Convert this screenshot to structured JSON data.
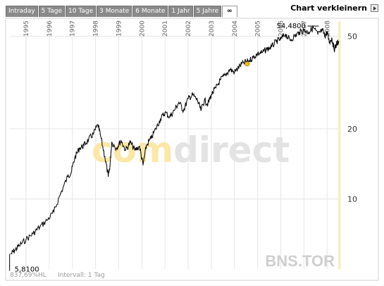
{
  "tabs": [
    {
      "label": "Intraday",
      "active": false
    },
    {
      "label": "5 Tage",
      "active": false
    },
    {
      "label": "10 Tage",
      "active": false
    },
    {
      "label": "3 Monate",
      "active": false
    },
    {
      "label": "6 Monate",
      "active": false
    },
    {
      "label": "1 Jahr",
      "active": false
    },
    {
      "label": "5 Jahre",
      "active": false
    },
    {
      "label": "∞",
      "active": true
    }
  ],
  "header": {
    "shrink_label": "Chart verkleinern"
  },
  "watermark": {
    "part1": "comdirect",
    "color_accent": "#f5c400"
  },
  "symbol": "BNS.TOR",
  "footer": {
    "change": "837,69%HL",
    "interval": "Intervall: 1 Tag"
  },
  "markers": {
    "high_label": "54,4800",
    "low_label": "5,8100"
  },
  "colors": {
    "line": "#000000",
    "grid": "#e6e6e6",
    "today_band": "#f8eec3",
    "tab_bg": "#8a8a8a"
  },
  "chart_data": {
    "type": "line",
    "y_scale": "log",
    "ylim": [
      5.0,
      58.0
    ],
    "xlim": [
      1994.3,
      2008.6
    ],
    "x_ticks": [
      "1995",
      "1996",
      "1997",
      "1998",
      "1999",
      "2000",
      "2001",
      "2002",
      "2003",
      "2004",
      "2005",
      "2006",
      "2007",
      "2008"
    ],
    "y_ticks": [
      10,
      20,
      50
    ],
    "series": [
      {
        "x": [
          1994.35,
          1994.5,
          1994.7,
          1995.0,
          1995.3,
          1995.6,
          1995.9,
          1996.2,
          1996.5,
          1996.8,
          1996.95,
          1997.1,
          1997.3,
          1997.5,
          1997.7,
          1997.9,
          1998.1,
          1998.2,
          1998.4,
          1998.55,
          1998.62,
          1998.7,
          1998.9,
          1999.1,
          1999.3,
          1999.5,
          1999.7,
          1999.9,
          2000.05,
          2000.2,
          2000.4,
          2000.6,
          2000.8,
          2001.0,
          2001.2,
          2001.4,
          2001.6,
          2001.8,
          2002.0,
          2002.2,
          2002.4,
          2002.55,
          2002.7,
          2002.85,
          2003.0,
          2003.2,
          2003.4,
          2003.6,
          2003.8,
          2004.0,
          2004.2,
          2004.4,
          2004.6,
          2004.8,
          2005.0,
          2005.2,
          2005.4,
          2005.6,
          2005.8,
          2006.0,
          2006.2,
          2006.4,
          2006.6,
          2006.8,
          2007.0,
          2007.2,
          2007.4,
          2007.6,
          2007.8,
          2007.9,
          2008.0,
          2008.1,
          2008.2,
          2008.3,
          2008.4,
          2008.5
        ],
        "y": [
          5.81,
          6.0,
          6.3,
          6.7,
          7.1,
          7.6,
          8.1,
          8.8,
          10.6,
          12.5,
          13.0,
          15.0,
          16.5,
          17.0,
          18.0,
          19.0,
          20.8,
          19.0,
          15.2,
          12.5,
          13.8,
          17.5,
          16.5,
          17.8,
          16.2,
          17.5,
          16.2,
          16.8,
          14.0,
          17.0,
          18.2,
          20.0,
          22.0,
          23.5,
          22.5,
          24.0,
          26.0,
          24.0,
          27.0,
          28.0,
          26.5,
          24.0,
          26.5,
          25.5,
          28.0,
          30.0,
          32.5,
          34.0,
          36.0,
          35.0,
          37.0,
          38.5,
          39.0,
          40.5,
          42.0,
          42.5,
          44.0,
          45.0,
          47.5,
          48.5,
          51.0,
          48.0,
          50.0,
          52.0,
          53.0,
          52.0,
          54.48,
          51.0,
          53.0,
          50.0,
          52.0,
          47.0,
          49.0,
          44.0,
          46.0,
          47.5
        ]
      }
    ]
  }
}
